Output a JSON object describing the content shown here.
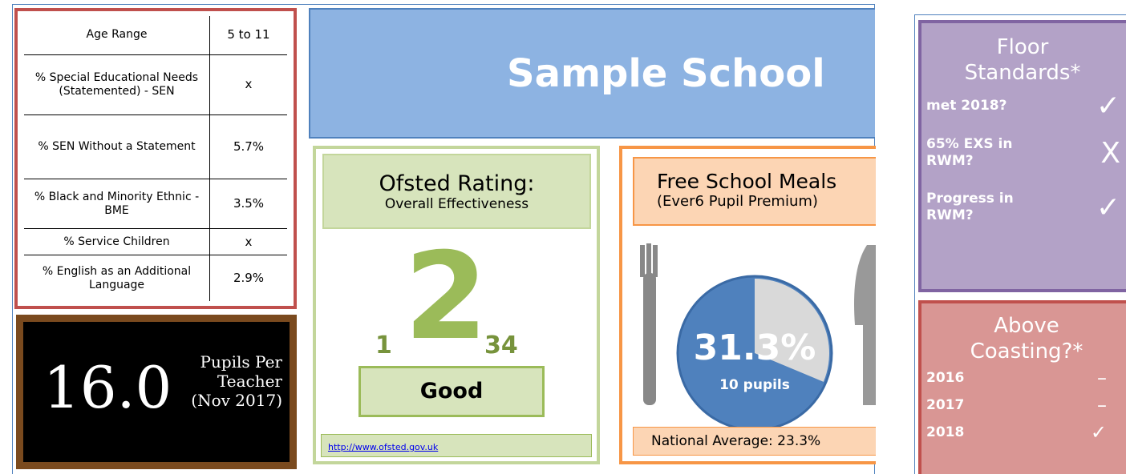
{
  "stats_table": {
    "rows": [
      [
        "Age Range",
        "5 to 11"
      ],
      [
        "% Special Educational Needs (Statemented) - SEN",
        "x"
      ],
      [
        "% SEN Without a Statement",
        "5.7%"
      ],
      [
        "% Black and Minority Ethnic - BME",
        "3.5%"
      ],
      [
        "% Service Children",
        "x"
      ],
      [
        "% English as an Additional Language",
        "2.9%"
      ]
    ]
  },
  "pupils_per_teacher": {
    "value": "16.0",
    "label": "Pupils Per Teacher (Nov 2017)"
  },
  "school_name": "Sample School",
  "ofsted": {
    "title": "Ofsted Rating:",
    "subtitle": "Overall Effectiveness",
    "scale": [
      "1",
      "2",
      "34"
    ],
    "rating": "Good",
    "link": "http://www.ofsted.gov.uk"
  },
  "free_school_meals": {
    "title": "Free School Meals",
    "subtitle": "(Ever6 Pupil Premium)",
    "pie": {
      "value": 31.3,
      "label": "31.3%"
    },
    "pupils": "10 pupils",
    "national_average": "National Average: 23.3%"
  },
  "floor_standards": {
    "title": "Floor Standards*",
    "items": [
      {
        "label": "met 2018?",
        "mark": "✓"
      },
      {
        "label": "65% EXS in RWM?",
        "mark": "X"
      },
      {
        "label": "Progress in RWM?",
        "mark": "✓"
      }
    ]
  },
  "coasting": {
    "title": "Above Coasting?*",
    "items": [
      {
        "label": "2016",
        "mark": "–"
      },
      {
        "label": "2017",
        "mark": "–"
      },
      {
        "label": "2018",
        "mark": "✓"
      }
    ]
  }
}
